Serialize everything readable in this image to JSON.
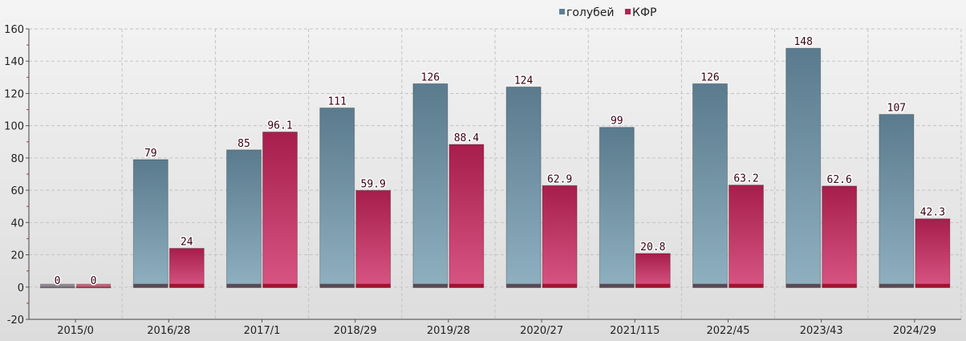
{
  "chart_data": {
    "type": "bar",
    "categories": [
      "2015/0",
      "2016/28",
      "2017/1",
      "2018/29",
      "2019/28",
      "2020/27",
      "2021/115",
      "2022/45",
      "2023/43",
      "2024/29"
    ],
    "series": [
      {
        "name": "голубей",
        "color": "#5d7f91",
        "values": [
          0,
          79,
          85,
          111,
          126,
          124,
          99,
          126,
          148,
          107
        ]
      },
      {
        "name": "КФР",
        "color": "#b02552",
        "values": [
          0,
          24,
          96.1,
          59.9,
          88.4,
          62.9,
          20.8,
          63.2,
          62.6,
          42.3
        ]
      }
    ],
    "data_labels": [
      [
        "0",
        "79",
        "85",
        "111",
        "126",
        "124",
        "99",
        "126",
        "148",
        "107"
      ],
      [
        "0",
        "24",
        "96.1",
        "59.9",
        "88.4",
        "62.9",
        "20.8",
        "63.2",
        "62.6",
        "42.3"
      ]
    ],
    "y_ticks": [
      -20,
      0,
      20,
      40,
      60,
      80,
      100,
      120,
      140,
      160
    ],
    "ylim": [
      -20,
      160
    ],
    "grid": true,
    "legend_position": "top-right"
  }
}
